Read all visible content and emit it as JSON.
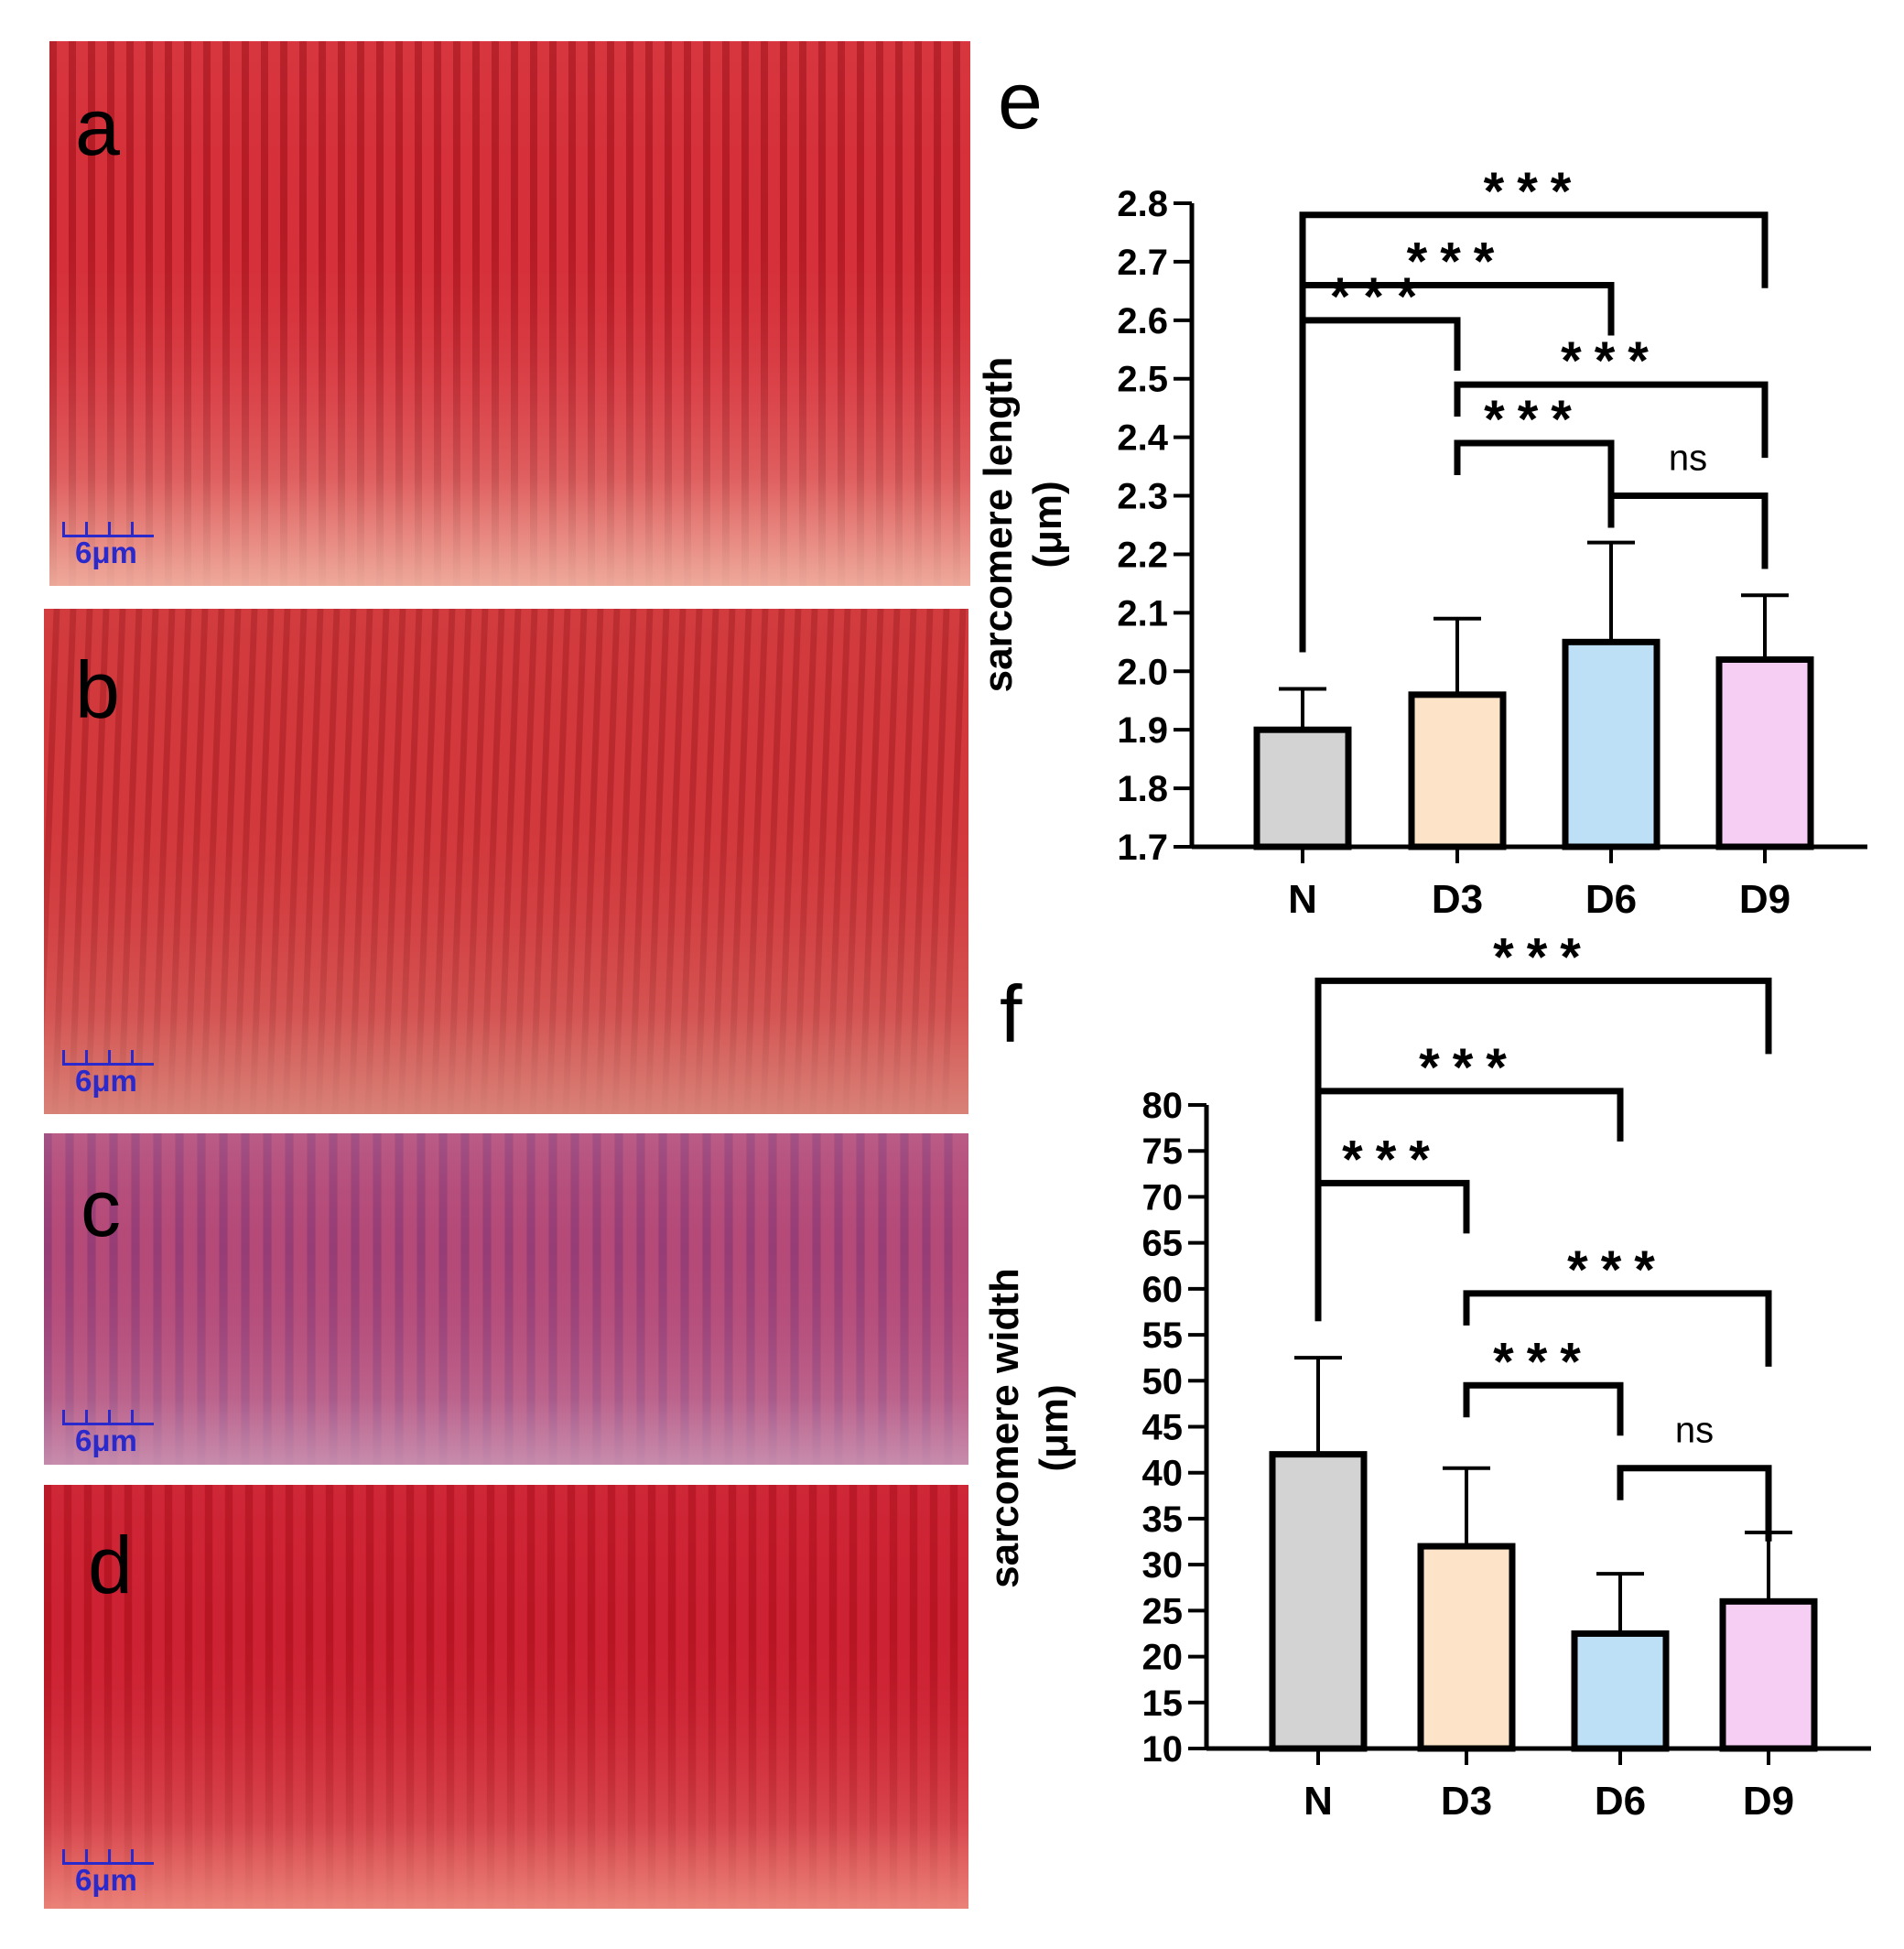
{
  "panels": [
    {
      "letter": "a",
      "scale_label": "6μm",
      "base_color": "#d6303a",
      "band_color": "#a8141f",
      "light_color": "#f1b7a6"
    },
    {
      "letter": "b",
      "scale_label": "6μm",
      "base_color": "#d2383c",
      "band_color": "#b02428",
      "light_color": "#d98a7e"
    },
    {
      "letter": "c",
      "scale_label": "6μm",
      "base_color": "#b54a78",
      "band_color": "#8e3a76",
      "light_color": "#c993b2"
    },
    {
      "letter": "d",
      "scale_label": "6μm",
      "base_color": "#cd2233",
      "band_color": "#b0121f",
      "light_color": "#ee8d80"
    }
  ],
  "chart_data": [
    {
      "panel_letter": "e",
      "type": "bar",
      "ylabel_line1": "sarcomere length",
      "ylabel_line2": "(μm)",
      "categories": [
        "N",
        "D3",
        "D6",
        "D9"
      ],
      "values": [
        1.9,
        1.96,
        2.05,
        2.02
      ],
      "errors": [
        0.07,
        0.13,
        0.17,
        0.11
      ],
      "colors": [
        "#d3d3d3",
        "#fde3c8",
        "#bde0f7",
        "#f6cdf3"
      ],
      "ylim": [
        1.7,
        2.8
      ],
      "yticks": [
        "1.7",
        "1.8",
        "1.9",
        "2.0",
        "2.1",
        "2.2",
        "2.3",
        "2.4",
        "2.5",
        "2.6",
        "2.7",
        "2.8"
      ],
      "tick_values": [
        1.7,
        1.8,
        1.9,
        2.0,
        2.1,
        2.2,
        2.3,
        2.4,
        2.5,
        2.6,
        2.7,
        2.8
      ],
      "comparisons": [
        {
          "from": 0,
          "to": 3,
          "label": "***",
          "level": 2.78
        },
        {
          "from": 0,
          "to": 2,
          "label": "***",
          "level": 2.66
        },
        {
          "from": 0,
          "to": 1,
          "label": "***",
          "level": 2.6
        },
        {
          "from": 1,
          "to": 3,
          "label": "***",
          "level": 2.49
        },
        {
          "from": 1,
          "to": 2,
          "label": "***",
          "level": 2.39
        },
        {
          "from": 2,
          "to": 3,
          "label": "ns",
          "level": 2.3
        }
      ]
    },
    {
      "panel_letter": "f",
      "type": "bar",
      "ylabel_line1": "sarcomere width",
      "ylabel_line2": "(μm)",
      "categories": [
        "N",
        "D3",
        "D6",
        "D9"
      ],
      "values": [
        42,
        32,
        22.5,
        26
      ],
      "errors": [
        10.5,
        8.5,
        6.5,
        7.5
      ],
      "colors": [
        "#d3d3d3",
        "#fde3c8",
        "#bde0f7",
        "#f6cdf3"
      ],
      "ylim": [
        10,
        80
      ],
      "yticks": [
        "10",
        "15",
        "20",
        "25",
        "30",
        "35",
        "40",
        "45",
        "50",
        "55",
        "60",
        "65",
        "70",
        "75",
        "80"
      ],
      "tick_values": [
        10,
        15,
        20,
        25,
        30,
        35,
        40,
        45,
        50,
        55,
        60,
        65,
        70,
        75,
        80
      ],
      "comparisons": [
        {
          "from": 0,
          "to": 3,
          "label": "***",
          "level": 93.5
        },
        {
          "from": 0,
          "to": 2,
          "label": "***",
          "level": 81.5
        },
        {
          "from": 0,
          "to": 1,
          "label": "***",
          "level": 71.5
        },
        {
          "from": 1,
          "to": 3,
          "label": "***",
          "level": 59.5
        },
        {
          "from": 1,
          "to": 2,
          "label": "***",
          "level": 49.5
        },
        {
          "from": 2,
          "to": 3,
          "label": "ns",
          "level": 40.5
        }
      ]
    }
  ]
}
